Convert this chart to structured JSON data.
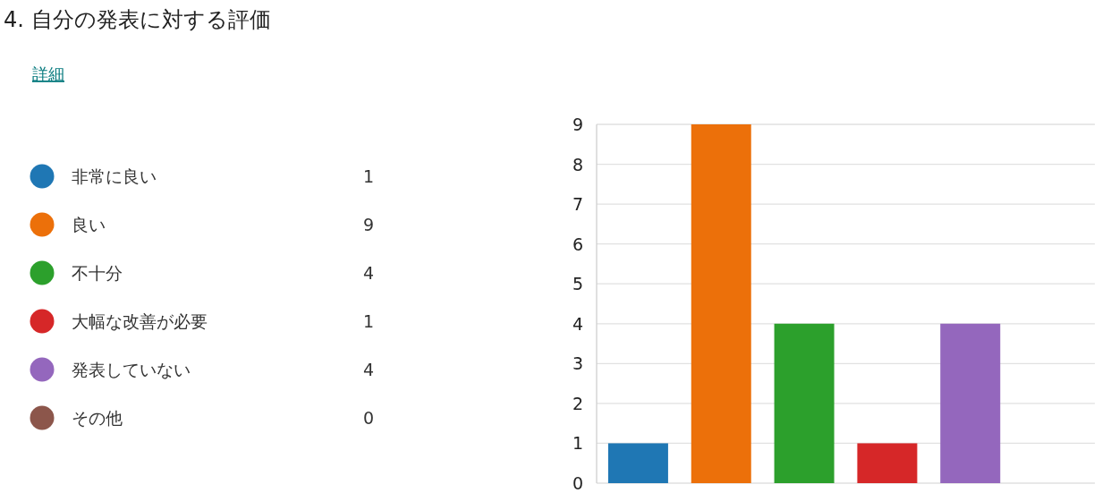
{
  "chart_data": [
    {
      "type": "other",
      "title": "4.  自分の発表に対する評価",
      "subtitle": "詳細",
      "categories": [
        "非常に良い",
        "良い",
        "不十分",
        "大幅な改善が必要",
        "発表していない",
        "その他"
      ],
      "values": [
        1,
        9,
        4,
        1,
        4,
        0
      ],
      "colors": [
        "#1f77b4",
        "#ec700a",
        "#2ca02c",
        "#d62728",
        "#9467bd",
        "#8c564b"
      ],
      "data_labels": true
    },
    {
      "type": "bar",
      "categories": [
        null,
        null,
        null,
        null,
        null,
        null
      ],
      "values": [
        1,
        9,
        4,
        1,
        4,
        0
      ],
      "colors": [
        "#1f77b4",
        "#ec700a",
        "#2ca02c",
        "#d62728",
        "#9467bd",
        "#8c564b"
      ],
      "ylim": [
        0,
        9
      ],
      "yticks": [
        0,
        1,
        2,
        3,
        4,
        5,
        6,
        7,
        8,
        9
      ],
      "grid": "y",
      "tick_labels": "y"
    }
  ]
}
